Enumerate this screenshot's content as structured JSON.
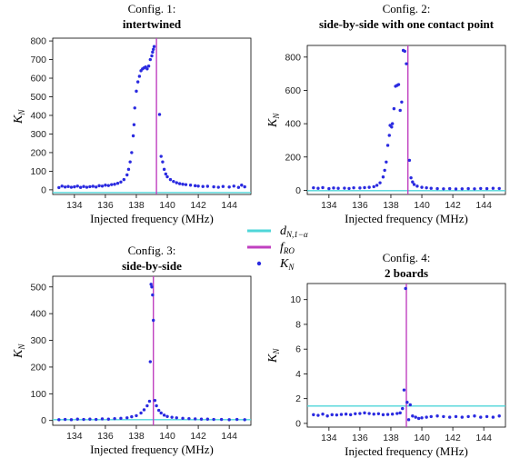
{
  "figure": {
    "legend": [
      {
        "key": "threshold",
        "label": "d",
        "sub": "N,1−α",
        "color": "#4fd6d8",
        "kind": "line"
      },
      {
        "key": "fro",
        "label": "f",
        "sub": "RO",
        "color": "#c040c0",
        "kind": "line"
      },
      {
        "key": "kn",
        "label": "K",
        "sub": "N",
        "color": "#2a2ae0",
        "kind": "dot"
      }
    ]
  },
  "chart_data": [
    {
      "type": "scatter",
      "title": "Config. 1:",
      "subtitle": "intertwined",
      "xlabel": "Injected frequency (MHz)",
      "ylabel": "K",
      "ylabel_sub": "N",
      "xlim": [
        132.6,
        145.4
      ],
      "ylim": [
        -25,
        815
      ],
      "xticks": [
        134,
        136,
        138,
        140,
        142,
        144
      ],
      "yticks": [
        0,
        100,
        200,
        300,
        400,
        500,
        600,
        700,
        800
      ],
      "threshold": -15,
      "f_ro": 139.3,
      "series": [
        {
          "values": [
            [
              133.0,
              12
            ],
            [
              133.2,
              20
            ],
            [
              133.4,
              15
            ],
            [
              133.6,
              18
            ],
            [
              133.8,
              14
            ],
            [
              134.0,
              16
            ],
            [
              134.2,
              20
            ],
            [
              134.4,
              13
            ],
            [
              134.6,
              18
            ],
            [
              134.8,
              14
            ],
            [
              135.0,
              17
            ],
            [
              135.2,
              19
            ],
            [
              135.4,
              15
            ],
            [
              135.6,
              22
            ],
            [
              135.8,
              20
            ],
            [
              136.0,
              25
            ],
            [
              136.2,
              23
            ],
            [
              136.4,
              28
            ],
            [
              136.6,
              30
            ],
            [
              136.8,
              35
            ],
            [
              137.0,
              42
            ],
            [
              137.2,
              55
            ],
            [
              137.4,
              80
            ],
            [
              137.5,
              110
            ],
            [
              137.6,
              150
            ],
            [
              137.7,
              200
            ],
            [
              137.8,
              290
            ],
            [
              137.85,
              350
            ],
            [
              137.9,
              440
            ],
            [
              138.0,
              530
            ],
            [
              138.1,
              580
            ],
            [
              138.2,
              610
            ],
            [
              138.3,
              640
            ],
            [
              138.4,
              650
            ],
            [
              138.5,
              655
            ],
            [
              138.6,
              660
            ],
            [
              138.7,
              650
            ],
            [
              138.8,
              665
            ],
            [
              138.9,
              700
            ],
            [
              139.0,
              720
            ],
            [
              139.05,
              740
            ],
            [
              139.1,
              755
            ],
            [
              139.15,
              770
            ],
            [
              139.5,
              405
            ],
            [
              139.6,
              180
            ],
            [
              139.7,
              150
            ],
            [
              139.8,
              110
            ],
            [
              139.9,
              85
            ],
            [
              140.0,
              70
            ],
            [
              140.2,
              55
            ],
            [
              140.4,
              45
            ],
            [
              140.6,
              38
            ],
            [
              140.8,
              33
            ],
            [
              141.0,
              30
            ],
            [
              141.2,
              28
            ],
            [
              141.5,
              25
            ],
            [
              141.8,
              22
            ],
            [
              142.0,
              20
            ],
            [
              142.3,
              18
            ],
            [
              142.6,
              19
            ],
            [
              143.0,
              16
            ],
            [
              143.3,
              14
            ],
            [
              143.6,
              18
            ],
            [
              144.0,
              15
            ],
            [
              144.3,
              20
            ],
            [
              144.6,
              13
            ],
            [
              144.8,
              25
            ],
            [
              145.0,
              16
            ]
          ]
        }
      ]
    },
    {
      "type": "scatter",
      "title": "Config. 2:",
      "subtitle": "side-by-side with one contact point",
      "xlabel": "Injected frequency (MHz)",
      "ylabel": "K",
      "ylabel_sub": "N",
      "xlim": [
        132.6,
        145.4
      ],
      "ylim": [
        -25,
        870
      ],
      "xticks": [
        134,
        136,
        138,
        140,
        142,
        144
      ],
      "yticks": [
        0,
        200,
        400,
        600,
        800
      ],
      "threshold": -2,
      "f_ro": 139.1,
      "series": [
        {
          "values": [
            [
              133.0,
              15
            ],
            [
              133.3,
              12
            ],
            [
              133.6,
              16
            ],
            [
              134.0,
              10
            ],
            [
              134.3,
              14
            ],
            [
              134.6,
              12
            ],
            [
              135.0,
              13
            ],
            [
              135.3,
              11
            ],
            [
              135.6,
              15
            ],
            [
              136.0,
              14
            ],
            [
              136.3,
              16
            ],
            [
              136.6,
              18
            ],
            [
              136.9,
              22
            ],
            [
              137.1,
              30
            ],
            [
              137.3,
              45
            ],
            [
              137.5,
              80
            ],
            [
              137.6,
              120
            ],
            [
              137.7,
              170
            ],
            [
              137.8,
              270
            ],
            [
              137.9,
              330
            ],
            [
              137.95,
              390
            ],
            [
              138.05,
              380
            ],
            [
              138.1,
              400
            ],
            [
              138.2,
              490
            ],
            [
              138.3,
              625
            ],
            [
              138.4,
              630
            ],
            [
              138.5,
              635
            ],
            [
              138.6,
              480
            ],
            [
              138.7,
              530
            ],
            [
              138.8,
              840
            ],
            [
              138.9,
              835
            ],
            [
              139.0,
              760
            ],
            [
              139.2,
              180
            ],
            [
              139.3,
              75
            ],
            [
              139.4,
              50
            ],
            [
              139.5,
              35
            ],
            [
              139.7,
              25
            ],
            [
              140.0,
              18
            ],
            [
              140.3,
              15
            ],
            [
              140.6,
              12
            ],
            [
              141.0,
              10
            ],
            [
              141.4,
              9
            ],
            [
              141.8,
              10
            ],
            [
              142.2,
              8
            ],
            [
              142.6,
              9
            ],
            [
              143.0,
              10
            ],
            [
              143.4,
              9
            ],
            [
              143.8,
              11
            ],
            [
              144.2,
              10
            ],
            [
              144.6,
              12
            ],
            [
              145.0,
              11
            ]
          ]
        }
      ]
    },
    {
      "type": "scatter",
      "title": "Config. 3:",
      "subtitle": "side-by-side",
      "xlabel": "Injected frequency (MHz)",
      "ylabel": "K",
      "ylabel_sub": "N",
      "xlim": [
        132.6,
        145.4
      ],
      "ylim": [
        -18,
        540
      ],
      "xticks": [
        134,
        136,
        138,
        140,
        142,
        144
      ],
      "yticks": [
        0,
        100,
        200,
        300,
        400,
        500
      ],
      "threshold": 3,
      "f_ro": 139.1,
      "series": [
        {
          "values": [
            [
              133.0,
              3
            ],
            [
              133.4,
              4
            ],
            [
              133.8,
              3
            ],
            [
              134.2,
              5
            ],
            [
              134.6,
              4
            ],
            [
              135.0,
              5
            ],
            [
              135.4,
              4
            ],
            [
              135.8,
              6
            ],
            [
              136.2,
              5
            ],
            [
              136.6,
              7
            ],
            [
              137.0,
              8
            ],
            [
              137.4,
              10
            ],
            [
              137.7,
              14
            ],
            [
              138.0,
              18
            ],
            [
              138.3,
              28
            ],
            [
              138.5,
              40
            ],
            [
              138.7,
              55
            ],
            [
              138.85,
              72
            ],
            [
              138.9,
              220
            ],
            [
              138.95,
              510
            ],
            [
              139.0,
              500
            ],
            [
              139.05,
              470
            ],
            [
              139.1,
              375
            ],
            [
              139.2,
              75
            ],
            [
              139.3,
              55
            ],
            [
              139.45,
              38
            ],
            [
              139.6,
              28
            ],
            [
              139.8,
              20
            ],
            [
              140.0,
              15
            ],
            [
              140.3,
              12
            ],
            [
              140.6,
              10
            ],
            [
              141.0,
              8
            ],
            [
              141.4,
              7
            ],
            [
              141.8,
              6
            ],
            [
              142.2,
              5
            ],
            [
              142.6,
              5
            ],
            [
              143.0,
              4
            ],
            [
              143.5,
              4
            ],
            [
              144.0,
              3
            ],
            [
              144.5,
              4
            ],
            [
              145.0,
              3
            ]
          ]
        }
      ]
    },
    {
      "type": "scatter",
      "title": "Config. 4:",
      "subtitle": "2 boards",
      "xlabel": "Injected frequency (MHz)",
      "ylabel": "K",
      "ylabel_sub": "N",
      "xlim": [
        132.6,
        145.4
      ],
      "ylim": [
        -0.3,
        11.3
      ],
      "xticks": [
        134,
        136,
        138,
        140,
        142,
        144
      ],
      "yticks": [
        0,
        2,
        4,
        6,
        8,
        10
      ],
      "threshold": 1.4,
      "f_ro": 139.0,
      "series": [
        {
          "values": [
            [
              133.0,
              0.7
            ],
            [
              133.3,
              0.65
            ],
            [
              133.6,
              0.75
            ],
            [
              133.9,
              0.6
            ],
            [
              134.2,
              0.7
            ],
            [
              134.5,
              0.68
            ],
            [
              134.8,
              0.72
            ],
            [
              135.1,
              0.75
            ],
            [
              135.4,
              0.7
            ],
            [
              135.7,
              0.78
            ],
            [
              136.0,
              0.8
            ],
            [
              136.3,
              0.85
            ],
            [
              136.6,
              0.8
            ],
            [
              136.9,
              0.75
            ],
            [
              137.2,
              0.78
            ],
            [
              137.5,
              0.7
            ],
            [
              137.8,
              0.72
            ],
            [
              138.1,
              0.75
            ],
            [
              138.4,
              0.8
            ],
            [
              138.6,
              0.85
            ],
            [
              138.75,
              1.2
            ],
            [
              138.85,
              2.7
            ],
            [
              138.95,
              10.9
            ],
            [
              139.05,
              1.7
            ],
            [
              139.15,
              0.3
            ],
            [
              139.25,
              1.5
            ],
            [
              139.4,
              0.6
            ],
            [
              139.6,
              0.5
            ],
            [
              139.8,
              0.4
            ],
            [
              140.0,
              0.45
            ],
            [
              140.3,
              0.5
            ],
            [
              140.6,
              0.55
            ],
            [
              141.0,
              0.6
            ],
            [
              141.4,
              0.55
            ],
            [
              141.8,
              0.5
            ],
            [
              142.2,
              0.55
            ],
            [
              142.6,
              0.5
            ],
            [
              143.0,
              0.55
            ],
            [
              143.4,
              0.6
            ],
            [
              143.8,
              0.5
            ],
            [
              144.2,
              0.55
            ],
            [
              144.6,
              0.5
            ],
            [
              145.0,
              0.6
            ]
          ]
        }
      ]
    }
  ]
}
